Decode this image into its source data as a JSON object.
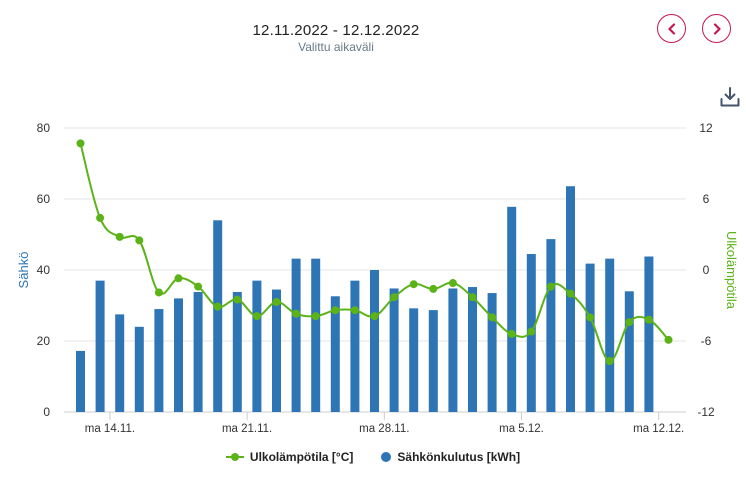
{
  "header": {
    "date_range": "12.11.2022 - 12.12.2022",
    "subtitle": "Valittu aikaväli"
  },
  "colors": {
    "bar": "#2e75b6",
    "line": "#5bb318",
    "nav_accent": "#c8174f",
    "left_axis_title": "#2e75b6",
    "right_axis_title": "#5bb318"
  },
  "legend": {
    "line_label": "Ulkolämpötila [°C]",
    "bar_label": "Sähkönkulutus [kWh]"
  },
  "chart_data": {
    "type": "bar",
    "title": "",
    "xlabel": "",
    "x_tick_labels": [
      "ma 14.11.",
      "ma 21.11.",
      "ma 28.11.",
      "ma 5.12.",
      "ma 12.12."
    ],
    "x_tick_day_index": [
      2,
      9,
      16,
      23,
      30
    ],
    "left_axis": {
      "label": "Sähkö",
      "min": 0,
      "max": 80,
      "ticks": [
        0,
        20,
        40,
        60,
        80
      ]
    },
    "right_axis": {
      "label": "Ulkolämpötila",
      "min": -12,
      "max": 12,
      "ticks": [
        -12,
        -6,
        0,
        6,
        12
      ]
    },
    "categories": [
      "12.11.",
      "13.11.",
      "14.11.",
      "15.11.",
      "16.11.",
      "17.11.",
      "18.11.",
      "19.11.",
      "20.11.",
      "21.11.",
      "22.11.",
      "23.11.",
      "24.11.",
      "25.11.",
      "26.11.",
      "27.11.",
      "28.11.",
      "29.11.",
      "30.11.",
      "1.12.",
      "2.12.",
      "3.12.",
      "4.12.",
      "5.12.",
      "6.12.",
      "7.12.",
      "8.12.",
      "9.12.",
      "10.12.",
      "11.12.",
      "12.12."
    ],
    "series": [
      {
        "name": "Sähkönkulutus [kWh]",
        "type": "bar",
        "axis": "left",
        "values": [
          17.2,
          37.0,
          27.5,
          24.0,
          29.0,
          32.0,
          33.8,
          54.0,
          33.8,
          37.0,
          34.5,
          43.2,
          43.2,
          32.6,
          37.0,
          40.0,
          34.8,
          29.2,
          28.7,
          34.8,
          35.2,
          33.5,
          57.8,
          44.5,
          48.7,
          63.6,
          41.8,
          43.2,
          34.0,
          43.8,
          null
        ]
      },
      {
        "name": "Ulkolämpötila [°C]",
        "type": "line",
        "axis": "right",
        "values": [
          10.7,
          4.4,
          2.8,
          2.5,
          -1.9,
          -0.7,
          -1.4,
          -3.1,
          -2.5,
          -3.9,
          -2.7,
          -3.7,
          -3.9,
          -3.4,
          -3.4,
          -3.9,
          -2.3,
          -1.2,
          -1.6,
          -1.1,
          -2.3,
          -4.0,
          -5.4,
          -5.2,
          -1.4,
          -2.0,
          -4.0,
          -7.7,
          -4.4,
          -4.2,
          -5.9
        ]
      }
    ]
  }
}
